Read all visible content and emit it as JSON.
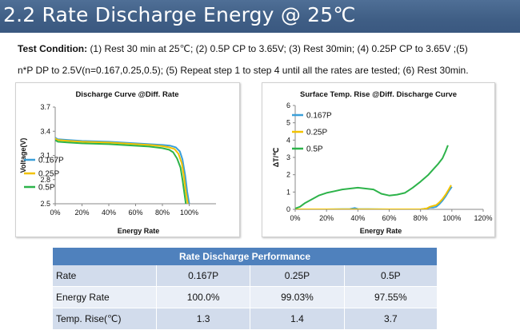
{
  "page": {
    "title": "2.2 Rate Discharge Energy @ 25℃",
    "test_condition_label": "Test Condition:",
    "test_condition_line1": "(1) Rest 30 min at 25℃; (2) 0.5P CP to 3.65V; (3) Rest 30min; (4) 0.25P CP to 3.65V ;(5)",
    "test_condition_line2": "n*P DP to 2.5V(n=0.167,0.25,0.5); (5) Repeat step 1 to step 4 until all the rates are tested; (6) Rest 30min."
  },
  "colors": {
    "title_bar": "#3f5e85",
    "series_0167": "#3a9fd9",
    "series_025": "#f2c200",
    "series_05": "#2db34a",
    "table_header": "#4f81bd",
    "table_row": "#d2dcec"
  },
  "chart_data": [
    {
      "type": "line",
      "title": "Discharge Curve @Diff. Rate",
      "xlabel": "Energy Rate",
      "ylabel": "Voltage(V)",
      "xlim": [
        0,
        1.2
      ],
      "ylim": [
        2.5,
        3.7
      ],
      "x_ticks": [
        "0%",
        "20%",
        "40%",
        "60%",
        "80%",
        "100%"
      ],
      "y_ticks": [
        "2.5",
        "2.8",
        "3.1",
        "3.4",
        "3.7"
      ],
      "legend_position": "left-middle",
      "series": [
        {
          "name": "0.167P",
          "color": "#3a9fd9",
          "x": [
            0,
            0.02,
            0.1,
            0.2,
            0.3,
            0.4,
            0.5,
            0.6,
            0.7,
            0.8,
            0.86,
            0.9,
            0.93,
            0.95,
            0.97,
            0.985,
            1.0
          ],
          "y": [
            3.32,
            3.3,
            3.29,
            3.28,
            3.275,
            3.27,
            3.26,
            3.25,
            3.24,
            3.23,
            3.22,
            3.2,
            3.15,
            3.05,
            2.85,
            2.65,
            2.5
          ]
        },
        {
          "name": "0.25P",
          "color": "#f2c200",
          "x": [
            0,
            0.02,
            0.1,
            0.2,
            0.3,
            0.4,
            0.5,
            0.6,
            0.7,
            0.8,
            0.85,
            0.89,
            0.92,
            0.945,
            0.96,
            0.975,
            0.99
          ],
          "y": [
            3.31,
            3.29,
            3.28,
            3.27,
            3.265,
            3.26,
            3.25,
            3.24,
            3.23,
            3.215,
            3.2,
            3.18,
            3.12,
            3.0,
            2.85,
            2.65,
            2.5
          ]
        },
        {
          "name": "0.5P",
          "color": "#2db34a",
          "x": [
            0,
            0.02,
            0.1,
            0.2,
            0.3,
            0.4,
            0.5,
            0.6,
            0.7,
            0.8,
            0.85,
            0.88,
            0.91,
            0.935,
            0.95,
            0.965,
            0.975
          ],
          "y": [
            3.29,
            3.27,
            3.26,
            3.25,
            3.245,
            3.24,
            3.23,
            3.22,
            3.21,
            3.19,
            3.17,
            3.14,
            3.06,
            2.95,
            2.8,
            2.62,
            2.5
          ]
        }
      ]
    },
    {
      "type": "line",
      "title": "Surface Temp. Rise @Diff. Discharge Curve",
      "xlabel": "Energy Rate",
      "ylabel": "ΔT/℃",
      "xlim": [
        0,
        1.2
      ],
      "ylim": [
        0,
        6
      ],
      "x_ticks": [
        "0%",
        "20%",
        "40%",
        "60%",
        "80%",
        "100%",
        "120%"
      ],
      "y_ticks": [
        "0",
        "1",
        "2",
        "3",
        "4",
        "5",
        "6"
      ],
      "legend_position": "top-left",
      "series": [
        {
          "name": "0.167P",
          "color": "#3a9fd9",
          "x": [
            0,
            0.2,
            0.35,
            0.38,
            0.4,
            0.6,
            0.8,
            0.84,
            0.86,
            0.88,
            0.9,
            0.92,
            0.94,
            0.96,
            0.98,
            1.0
          ],
          "y": [
            0,
            0,
            0.02,
            0.08,
            0.02,
            0,
            0,
            0.05,
            0.1,
            0.1,
            0.15,
            0.3,
            0.5,
            0.75,
            1.05,
            1.3
          ]
        },
        {
          "name": "0.25P",
          "color": "#f2c200",
          "x": [
            0,
            0.2,
            0.4,
            0.6,
            0.8,
            0.84,
            0.86,
            0.88,
            0.9,
            0.92,
            0.94,
            0.96,
            0.98,
            0.995
          ],
          "y": [
            0,
            0,
            0,
            0,
            0,
            0.05,
            0.15,
            0.2,
            0.25,
            0.4,
            0.6,
            0.85,
            1.15,
            1.4
          ]
        },
        {
          "name": "0.5P",
          "color": "#2db34a",
          "x": [
            0,
            0.03,
            0.06,
            0.1,
            0.15,
            0.2,
            0.25,
            0.3,
            0.35,
            0.4,
            0.45,
            0.5,
            0.55,
            0.6,
            0.65,
            0.7,
            0.75,
            0.8,
            0.85,
            0.88,
            0.91,
            0.94,
            0.96,
            0.975
          ],
          "y": [
            0.05,
            0.15,
            0.35,
            0.55,
            0.8,
            0.95,
            1.05,
            1.15,
            1.2,
            1.25,
            1.2,
            1.15,
            0.9,
            0.8,
            0.85,
            0.95,
            1.25,
            1.6,
            2.0,
            2.3,
            2.6,
            2.95,
            3.35,
            3.7
          ]
        }
      ]
    }
  ],
  "table": {
    "title": "Rate Discharge Performance",
    "rows": [
      {
        "label": "Rate",
        "values": [
          "0.167P",
          "0.25P",
          "0.5P"
        ]
      },
      {
        "label": "Energy Rate",
        "values": [
          "100.0%",
          "99.03%",
          "97.55%"
        ]
      },
      {
        "label": "Temp. Rise(℃)",
        "values": [
          "1.3",
          "1.4",
          "3.7"
        ]
      }
    ]
  }
}
